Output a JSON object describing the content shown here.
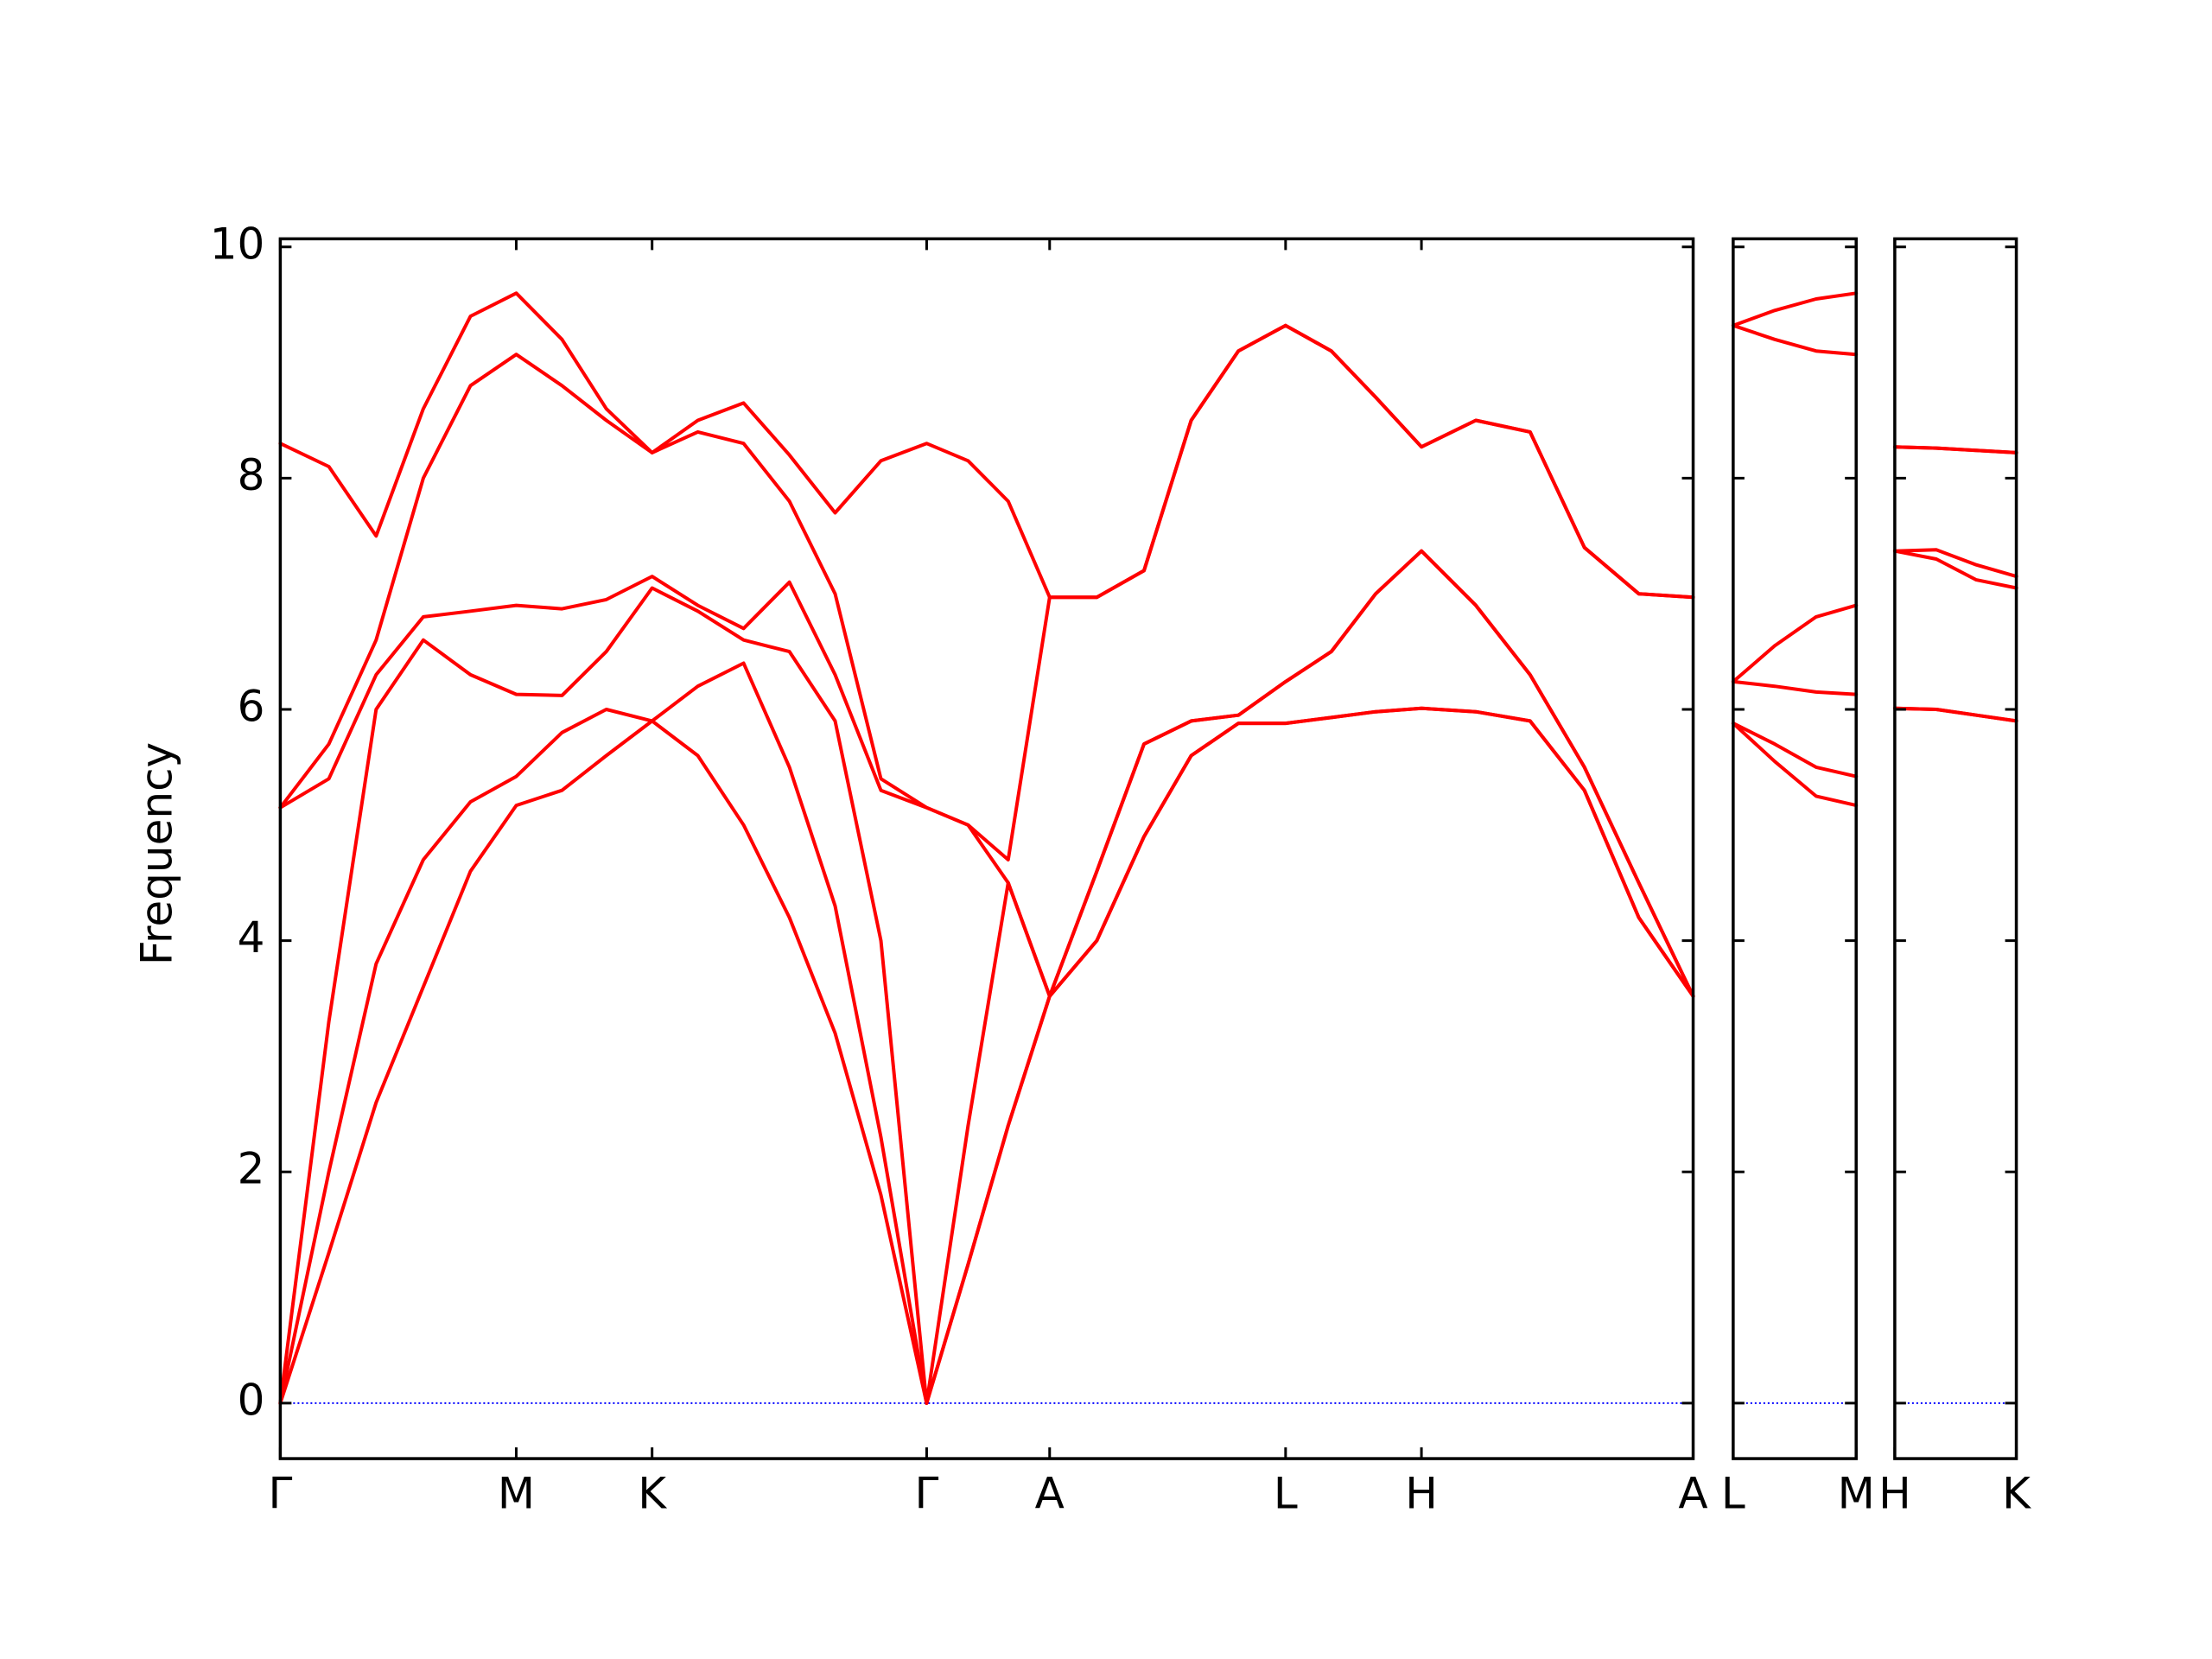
{
  "chart_data": [
    {
      "type": "line",
      "ylabel": "Frequency",
      "color": "#ff0000",
      "zero_line_color": "#0000ff",
      "show_ytick_labels": true,
      "x": [
        0,
        0.34,
        0.67,
        1.0,
        1.33,
        1.65,
        1.97,
        2.28,
        2.6,
        2.92,
        3.24,
        3.56,
        3.88,
        4.2,
        4.52,
        4.81,
        5.09,
        5.38,
        5.71,
        6.04,
        6.37,
        6.7,
        7.03,
        7.35,
        7.66,
        7.98,
        8.36,
        8.74,
        9.12,
        9.5,
        9.88
      ],
      "xlim": [
        0,
        9.88
      ],
      "xticks": [
        {
          "value": 0,
          "label": "Γ"
        },
        {
          "value": 1.65,
          "label": "M"
        },
        {
          "value": 2.6,
          "label": "K"
        },
        {
          "value": 4.52,
          "label": "Γ"
        },
        {
          "value": 5.38,
          "label": "A"
        },
        {
          "value": 7.03,
          "label": "L"
        },
        {
          "value": 7.98,
          "label": "H"
        },
        {
          "value": 9.88,
          "label": "A"
        }
      ],
      "ylim": [
        -0.48,
        10.07
      ],
      "yticks": [
        0,
        2,
        4,
        6,
        8,
        10
      ],
      "series": [
        {
          "values": [
            0,
            1.3,
            2.6,
            3.6,
            4.6,
            5.17,
            5.3,
            5.6,
            5.9,
            5.6,
            5.0,
            4.2,
            3.2,
            1.8,
            0,
            1.2,
            2.4,
            3.52,
            4.0,
            4.9,
            5.6,
            5.88,
            5.88,
            5.93,
            5.98,
            6.01,
            5.98,
            5.9,
            5.3,
            4.2,
            3.52
          ]
        },
        {
          "values": [
            0,
            2.0,
            3.8,
            4.7,
            5.2,
            5.42,
            5.8,
            6.0,
            5.9,
            6.2,
            6.4,
            5.5,
            4.3,
            2.3,
            0,
            1.2,
            2.4,
            3.52,
            4.0,
            4.9,
            5.6,
            5.88,
            5.88,
            5.93,
            5.98,
            6.01,
            5.98,
            5.9,
            5.3,
            4.2,
            3.52
          ]
        },
        {
          "values": [
            0,
            3.3,
            6.0,
            6.6,
            6.3,
            6.13,
            6.12,
            6.5,
            7.05,
            6.85,
            6.6,
            6.5,
            5.9,
            4.0,
            0,
            2.4,
            4.5,
            3.52,
            4.6,
            5.7,
            5.9,
            5.95,
            6.24,
            6.5,
            7.0,
            7.37,
            6.9,
            6.3,
            5.5,
            4.5,
            3.52
          ]
        },
        {
          "values": [
            5.15,
            5.4,
            6.3,
            6.8,
            6.85,
            6.9,
            6.87,
            6.95,
            7.15,
            6.9,
            6.7,
            7.1,
            6.3,
            5.3,
            5.15,
            5.0,
            4.5,
            3.52,
            4.6,
            5.7,
            5.9,
            5.95,
            6.24,
            6.5,
            7.0,
            7.37,
            6.9,
            6.3,
            5.5,
            4.5,
            3.52
          ]
        },
        {
          "values": [
            5.15,
            5.7,
            6.6,
            8.0,
            8.8,
            9.07,
            8.8,
            8.5,
            8.22,
            8.4,
            8.3,
            7.8,
            7.0,
            5.4,
            5.15,
            5.0,
            4.7,
            6.97,
            6.97,
            7.2,
            8.5,
            9.1,
            9.32,
            9.1,
            8.7,
            8.27,
            8.5,
            8.4,
            7.4,
            7.0,
            6.97
          ]
        },
        {
          "values": [
            8.3,
            8.1,
            7.5,
            8.6,
            9.4,
            9.6,
            9.2,
            8.6,
            8.22,
            8.5,
            8.65,
            8.2,
            7.7,
            8.15,
            8.3,
            8.15,
            7.8,
            6.97,
            6.97,
            7.2,
            8.5,
            9.1,
            9.32,
            9.1,
            8.7,
            8.27,
            8.5,
            8.4,
            7.4,
            7.0,
            6.97
          ]
        }
      ]
    },
    {
      "type": "line",
      "color": "#ff0000",
      "zero_line_color": "#0000ff",
      "show_ytick_labels": false,
      "x": [
        0,
        0.29,
        0.58,
        0.86
      ],
      "xlim": [
        0,
        0.86
      ],
      "xticks": [
        {
          "value": 0,
          "label": "L"
        },
        {
          "value": 0.86,
          "label": "M"
        }
      ],
      "ylim": [
        -0.48,
        10.07
      ],
      "yticks": [
        0,
        2,
        4,
        6,
        8,
        10
      ],
      "series": [
        {
          "values": [
            5.88,
            5.55,
            5.25,
            5.17
          ]
        },
        {
          "values": [
            5.88,
            5.7,
            5.5,
            5.42
          ]
        },
        {
          "values": [
            6.24,
            6.2,
            6.15,
            6.13
          ]
        },
        {
          "values": [
            6.24,
            6.55,
            6.8,
            6.9
          ]
        },
        {
          "values": [
            9.32,
            9.2,
            9.1,
            9.07
          ]
        },
        {
          "values": [
            9.32,
            9.45,
            9.55,
            9.6
          ]
        }
      ]
    },
    {
      "type": "line",
      "color": "#ff0000",
      "zero_line_color": "#0000ff",
      "show_ytick_labels": false,
      "x": [
        0,
        0.29,
        0.57,
        0.85
      ],
      "xlim": [
        0,
        0.85
      ],
      "xticks": [
        {
          "value": 0,
          "label": "H"
        },
        {
          "value": 0.85,
          "label": "K"
        }
      ],
      "ylim": [
        -0.48,
        10.07
      ],
      "yticks": [
        0,
        2,
        4,
        6,
        8,
        10
      ],
      "series": [
        {
          "values": [
            6.01,
            6.0,
            5.95,
            5.9
          ]
        },
        {
          "values": [
            6.01,
            6.0,
            5.95,
            5.9
          ]
        },
        {
          "values": [
            7.37,
            7.3,
            7.12,
            7.05
          ]
        },
        {
          "values": [
            7.37,
            7.38,
            7.25,
            7.15
          ]
        },
        {
          "values": [
            8.27,
            8.26,
            8.24,
            8.22
          ]
        },
        {
          "values": [
            8.27,
            8.26,
            8.24,
            8.22
          ]
        }
      ]
    }
  ]
}
